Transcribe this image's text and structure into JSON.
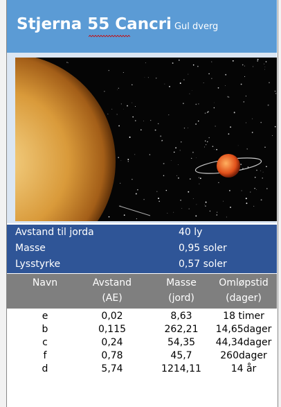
{
  "header": {
    "title": "Stjerna 55 Cancri",
    "subtitle": "Gul dverg"
  },
  "info": [
    [
      "Avstand til jorda",
      "40 ly"
    ],
    [
      "Masse",
      "0,95 soler"
    ],
    [
      "Lysstyrke",
      "0,57 soler"
    ]
  ],
  "table": {
    "columns": [
      [
        "Navn"
      ],
      [
        "Avstand",
        "(AE)"
      ],
      [
        "Masse",
        "(jord)"
      ],
      [
        "Omløpstid",
        "(dager)"
      ]
    ],
    "rows": [
      [
        "e",
        "0,02",
        "8,63",
        "18 timer"
      ],
      [
        "b",
        "0,115",
        "262,21",
        "14,65dager"
      ],
      [
        "c",
        "0,24",
        "54,35",
        "44,34dager"
      ],
      [
        "f",
        "0,78",
        "45,7",
        "260dager"
      ],
      [
        "d",
        "5,74",
        "1214,11",
        "14 år"
      ]
    ]
  }
}
